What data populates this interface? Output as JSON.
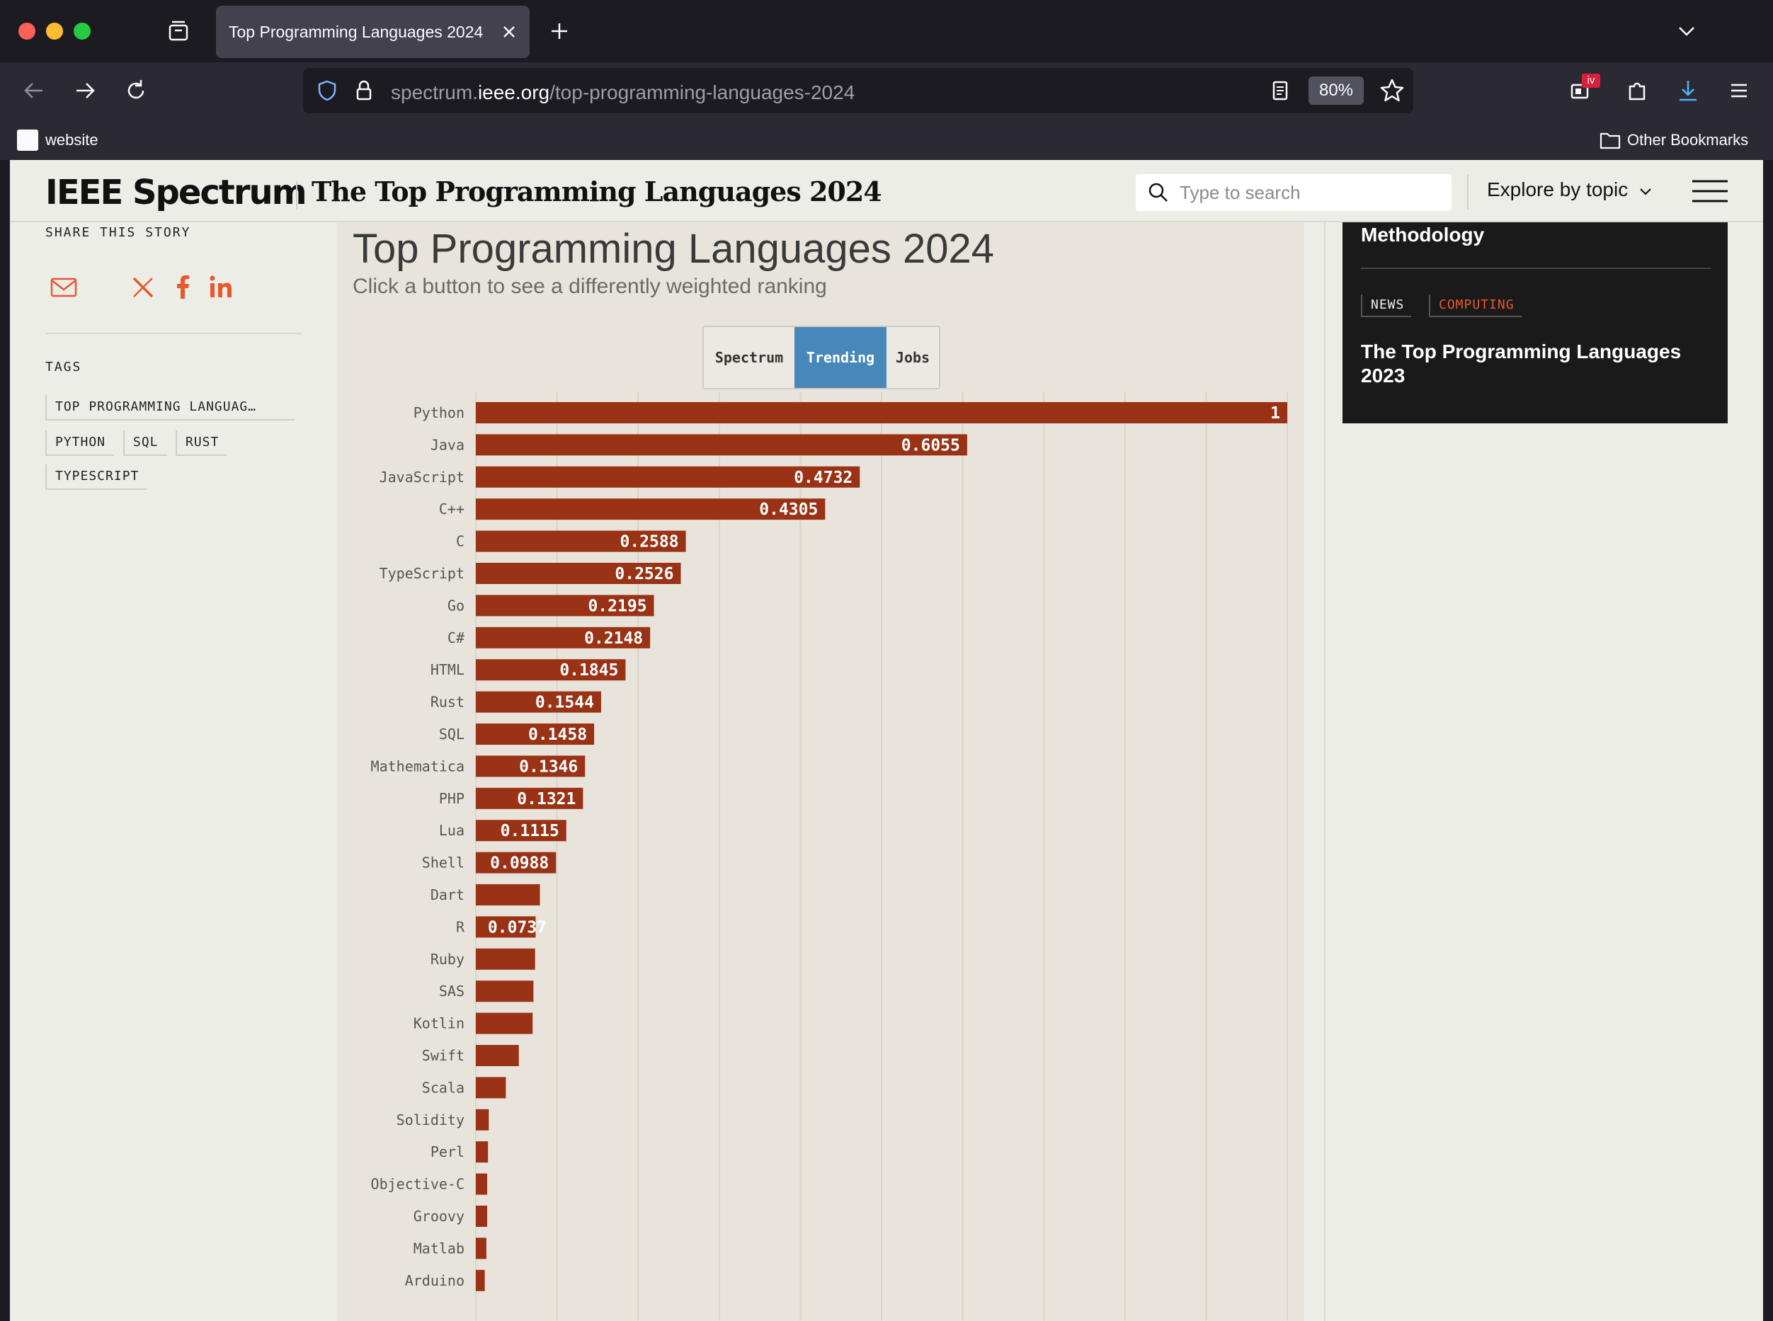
{
  "browser": {
    "tab_title": "Top Programming Languages 2024",
    "url_domain_prefix": "spectrum.",
    "url_domain": "ieee.org",
    "url_path": "/top-programming-languages-2024",
    "zoom": "80%",
    "extension_badge": "iv",
    "bookmark_label": "website",
    "other_bookmarks": "Other Bookmarks"
  },
  "header": {
    "logo": "IEEE Spectrum",
    "title": "The Top Programming Languages 2024",
    "search_placeholder": "Type to search",
    "explore_label": "Explore by topic"
  },
  "left": {
    "share_label": "SHARE THIS STORY",
    "tags_label": "TAGS",
    "tags": [
      "TOP PROGRAMMING LANGUAG…",
      "PYTHON",
      "SQL",
      "RUST",
      "TYPESCRIPT"
    ]
  },
  "chart_card": {
    "title": "Top Programming Languages 2024",
    "subtitle": "Click a button to see a differently weighted ranking",
    "buttons": [
      "Spectrum",
      "Trending",
      "Jobs"
    ],
    "active_button": "Trending"
  },
  "related": {
    "prev_headline": "Methodology",
    "category_1": "NEWS",
    "category_2": "COMPUTING",
    "headline": "The Top Programming Languages 2023"
  },
  "colors": {
    "bar": "#9a3215",
    "accent_blue": "#4787b9",
    "accent_orange": "#e8582c",
    "share_icon": "#e8582c"
  },
  "chart_data": {
    "type": "bar",
    "orientation": "horizontal",
    "title": "Top Programming Languages 2024",
    "subtitle": "Click a button to see a differently weighted ranking",
    "xlim": [
      0,
      1
    ],
    "grid": true,
    "categories": [
      "Python",
      "Java",
      "JavaScript",
      "C++",
      "C",
      "TypeScript",
      "Go",
      "C#",
      "HTML",
      "Rust",
      "SQL",
      "Mathematica",
      "PHP",
      "Lua",
      "Shell",
      "Dart",
      "R",
      "Ruby",
      "SAS",
      "Kotlin",
      "Swift",
      "Scala",
      "Solidity",
      "Perl",
      "Objective-C",
      "Groovy",
      "Matlab",
      "Arduino"
    ],
    "values": [
      1,
      0.6055,
      0.4732,
      0.4305,
      0.2588,
      0.2526,
      0.2195,
      0.2148,
      0.1845,
      0.1544,
      0.1458,
      0.1346,
      0.1321,
      0.1115,
      0.0988,
      0.079,
      0.0737,
      0.073,
      0.071,
      0.07,
      0.053,
      0.037,
      0.016,
      0.015,
      0.014,
      0.014,
      0.013,
      0.011
    ],
    "labels": [
      "1",
      "0.6055",
      "0.4732",
      "0.4305",
      "0.2588",
      "0.2526",
      "0.2195",
      "0.2148",
      "0.1845",
      "0.1544",
      "0.1458",
      "0.1346",
      "0.1321",
      "0.1115",
      "0.0988",
      "",
      "0.0737",
      "",
      "",
      "",
      "",
      "",
      "",
      "",
      "",
      "",
      "",
      ""
    ]
  }
}
